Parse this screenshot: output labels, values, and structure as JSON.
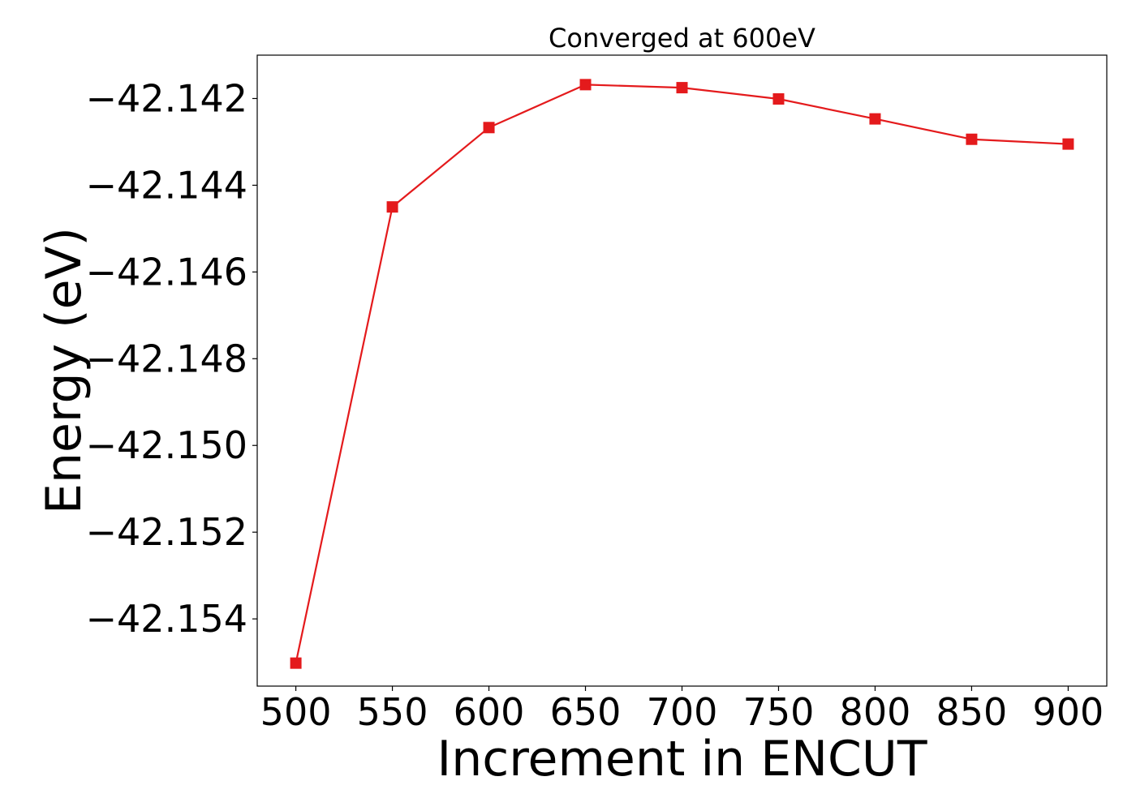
{
  "chart_data": {
    "type": "line",
    "title": "Converged at 600eV",
    "xlabel": "Increment in ENCUT",
    "ylabel": "Energy (eV)",
    "x": [
      500,
      550,
      600,
      650,
      700,
      750,
      800,
      850,
      900
    ],
    "series": [
      {
        "values": [
          -42.15502,
          -42.1445,
          -42.14267,
          -42.14168,
          -42.14175,
          -42.14201,
          -42.14247,
          -42.14294,
          -42.14305
        ],
        "color": "#e41a1c",
        "marker": "square"
      }
    ],
    "xticks": [
      500,
      550,
      600,
      650,
      700,
      750,
      800,
      850,
      900
    ],
    "yticks": [
      -42.154,
      -42.152,
      -42.15,
      -42.148,
      -42.146,
      -42.144,
      -42.142
    ],
    "xtick_labels": [
      "500",
      "550",
      "600",
      "650",
      "700",
      "750",
      "800",
      "850",
      "900"
    ],
    "ytick_labels": [
      "−42.154",
      "−42.152",
      "−42.150",
      "−42.148",
      "−42.146",
      "−42.144",
      "−42.142"
    ],
    "xlim": [
      480,
      920
    ],
    "ylim": [
      -42.15555,
      -42.141
    ],
    "grid": false,
    "legend": false
  }
}
